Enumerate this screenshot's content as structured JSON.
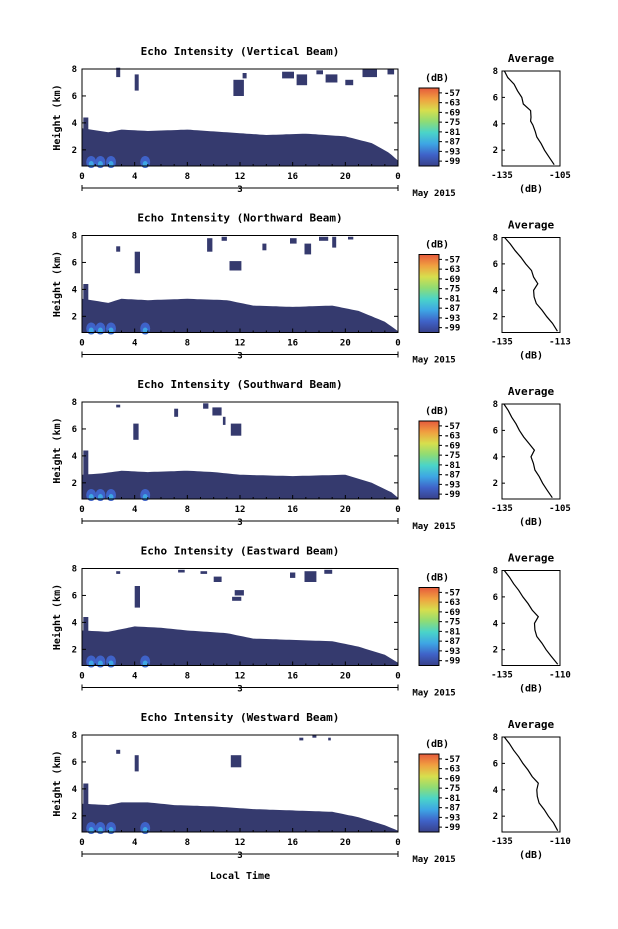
{
  "figure": {
    "xlabel": "Local Time",
    "date_label": "May 2015",
    "day_label": "3",
    "unit_label": "(dB)",
    "average_title": "Average",
    "ylabel": "Height (km)"
  },
  "chart_data": [
    {
      "type": "heatmap",
      "title": "Echo Intensity (Vertical Beam)",
      "ylabel": "Height (km)",
      "x_ticks": [
        "0",
        "4",
        "8",
        "12",
        "16",
        "20",
        "0"
      ],
      "x_range_hours": [
        0,
        24
      ],
      "y_ticks": [
        "2",
        "4",
        "6",
        "8"
      ],
      "y_range_km": [
        0.8,
        8.0
      ],
      "colorbar": {
        "label": "(dB)",
        "ticks": [
          "-57",
          "-63",
          "-69",
          "-75",
          "-81",
          "-87",
          "-93",
          "-99"
        ],
        "range": [
          -99,
          -57
        ]
      },
      "average_profile": {
        "title": "Average",
        "xlabel": "(dB)",
        "x_ticks": [
          "-135",
          "-105"
        ],
        "x_range": [
          -135,
          -105
        ],
        "y_ticks": [
          "2",
          "4",
          "6",
          "8"
        ],
        "points": [
          [
            -108,
            0.9
          ],
          [
            -111,
            1.5
          ],
          [
            -113,
            2.0
          ],
          [
            -115,
            2.5
          ],
          [
            -117,
            3.0
          ],
          [
            -118,
            3.4
          ],
          [
            -119,
            3.9
          ],
          [
            -121,
            4.2
          ],
          [
            -120,
            4.5
          ],
          [
            -121,
            5.0
          ],
          [
            -124,
            5.5
          ],
          [
            -125,
            6.0
          ],
          [
            -127,
            6.5
          ],
          [
            -129,
            7.0
          ],
          [
            -132,
            7.5
          ],
          [
            -134,
            8.0
          ]
        ]
      }
    },
    {
      "type": "heatmap",
      "title": "Echo Intensity (Northward Beam)",
      "ylabel": "Height (km)",
      "x_ticks": [
        "0",
        "4",
        "8",
        "12",
        "16",
        "20",
        "0"
      ],
      "x_range_hours": [
        0,
        24
      ],
      "y_ticks": [
        "2",
        "4",
        "6",
        "8"
      ],
      "y_range_km": [
        0.8,
        8.0
      ],
      "colorbar": {
        "label": "(dB)",
        "ticks": [
          "-57",
          "-63",
          "-69",
          "-75",
          "-81",
          "-87",
          "-93",
          "-99"
        ],
        "range": [
          -99,
          -57
        ]
      },
      "average_profile": {
        "title": "Average",
        "xlabel": "(dB)",
        "x_ticks": [
          "-135",
          "-113"
        ],
        "x_range": [
          -135,
          -113
        ],
        "y_ticks": [
          "2",
          "4",
          "6",
          "8"
        ],
        "points": [
          [
            -114,
            0.9
          ],
          [
            -116,
            1.5
          ],
          [
            -118,
            2.0
          ],
          [
            -120,
            2.5
          ],
          [
            -122,
            3.0
          ],
          [
            -123,
            3.5
          ],
          [
            -123,
            4.0
          ],
          [
            -122,
            4.5
          ],
          [
            -123,
            5.0
          ],
          [
            -124,
            5.5
          ],
          [
            -126,
            6.0
          ],
          [
            -128,
            6.5
          ],
          [
            -130,
            7.0
          ],
          [
            -132,
            7.5
          ],
          [
            -134,
            8.0
          ]
        ]
      }
    },
    {
      "type": "heatmap",
      "title": "Echo Intensity (Southward Beam)",
      "ylabel": "Height (km)",
      "x_ticks": [
        "0",
        "4",
        "8",
        "12",
        "16",
        "20",
        "0"
      ],
      "x_range_hours": [
        0,
        24
      ],
      "y_ticks": [
        "2",
        "4",
        "6",
        "8"
      ],
      "y_range_km": [
        0.8,
        8.0
      ],
      "colorbar": {
        "label": "(dB)",
        "ticks": [
          "-57",
          "-63",
          "-69",
          "-75",
          "-81",
          "-87",
          "-93",
          "-99"
        ],
        "range": [
          -99,
          -57
        ]
      },
      "average_profile": {
        "title": "Average",
        "xlabel": "(dB)",
        "x_ticks": [
          "-135",
          "-105"
        ],
        "x_range": [
          -135,
          -105
        ],
        "y_ticks": [
          "2",
          "4",
          "6",
          "8"
        ],
        "points": [
          [
            -109,
            0.9
          ],
          [
            -112,
            1.5
          ],
          [
            -114,
            2.0
          ],
          [
            -116,
            2.5
          ],
          [
            -118,
            3.0
          ],
          [
            -119,
            3.5
          ],
          [
            -120,
            4.0
          ],
          [
            -119,
            4.5
          ],
          [
            -121,
            5.0
          ],
          [
            -124,
            5.5
          ],
          [
            -126,
            6.0
          ],
          [
            -128,
            6.5
          ],
          [
            -130,
            7.0
          ],
          [
            -132,
            7.5
          ],
          [
            -134,
            8.0
          ]
        ]
      }
    },
    {
      "type": "heatmap",
      "title": "Echo Intensity (Eastward Beam)",
      "ylabel": "Height (km)",
      "x_ticks": [
        "0",
        "4",
        "8",
        "12",
        "16",
        "20",
        "0"
      ],
      "x_range_hours": [
        0,
        24
      ],
      "y_ticks": [
        "2",
        "4",
        "6",
        "8"
      ],
      "y_range_km": [
        0.8,
        8.0
      ],
      "colorbar": {
        "label": "(dB)",
        "ticks": [
          "-57",
          "-63",
          "-69",
          "-75",
          "-81",
          "-87",
          "-93",
          "-99"
        ],
        "range": [
          -99,
          -57
        ]
      },
      "average_profile": {
        "title": "Average",
        "xlabel": "(dB)",
        "x_ticks": [
          "-135",
          "-110"
        ],
        "x_range": [
          -135,
          -110
        ],
        "y_ticks": [
          "2",
          "4",
          "6",
          "8"
        ],
        "points": [
          [
            -111,
            0.9
          ],
          [
            -114,
            1.5
          ],
          [
            -116,
            2.0
          ],
          [
            -118,
            2.5
          ],
          [
            -120,
            3.0
          ],
          [
            -121,
            3.5
          ],
          [
            -121,
            4.0
          ],
          [
            -120,
            4.5
          ],
          [
            -122,
            5.0
          ],
          [
            -124,
            5.5
          ],
          [
            -126,
            6.0
          ],
          [
            -128,
            6.5
          ],
          [
            -130,
            7.0
          ],
          [
            -132,
            7.5
          ],
          [
            -134,
            8.0
          ]
        ]
      }
    },
    {
      "type": "heatmap",
      "title": "Echo Intensity (Westward Beam)",
      "ylabel": "Height (km)",
      "x_ticks": [
        "0",
        "4",
        "8",
        "12",
        "16",
        "20",
        "0"
      ],
      "x_range_hours": [
        0,
        24
      ],
      "y_ticks": [
        "2",
        "4",
        "6",
        "8"
      ],
      "y_range_km": [
        0.8,
        8.0
      ],
      "colorbar": {
        "label": "(dB)",
        "ticks": [
          "-57",
          "-63",
          "-69",
          "-75",
          "-81",
          "-87",
          "-93",
          "-99"
        ],
        "range": [
          -99,
          -57
        ]
      },
      "average_profile": {
        "title": "Average",
        "xlabel": "(dB)",
        "x_ticks": [
          "-135",
          "-110"
        ],
        "x_range": [
          -135,
          -110
        ],
        "y_ticks": [
          "2",
          "4",
          "6",
          "8"
        ],
        "points": [
          [
            -111,
            0.9
          ],
          [
            -113,
            1.5
          ],
          [
            -115,
            2.0
          ],
          [
            -117,
            2.5
          ],
          [
            -119,
            3.0
          ],
          [
            -120,
            3.5
          ],
          [
            -120,
            4.0
          ],
          [
            -120,
            4.5
          ],
          [
            -122,
            5.0
          ],
          [
            -124,
            5.5
          ],
          [
            -126,
            6.0
          ],
          [
            -128,
            6.5
          ],
          [
            -130,
            7.0
          ],
          [
            -132,
            7.5
          ],
          [
            -134,
            8.0
          ]
        ]
      }
    }
  ],
  "colors": {
    "background_echo": "#353a6e",
    "colorbar_stops": [
      "#38408a",
      "#3f62c8",
      "#3ea6e4",
      "#4ad4c9",
      "#8fdc74",
      "#d7de4d",
      "#f0a040",
      "#e65a3c"
    ],
    "line": "#000000"
  }
}
